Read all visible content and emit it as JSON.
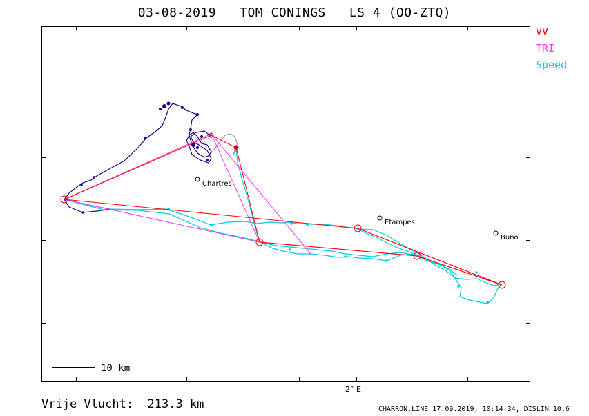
{
  "title": "03-08-2019   TOM CONINGS   LS 4 (OO-ZTQ)",
  "legend": [
    {
      "label": "VV",
      "color": "#ff0000"
    },
    {
      "label": "TRI",
      "color": "#ff33ff"
    },
    {
      "label": "Speed",
      "color": "#00ccdd"
    }
  ],
  "places": [
    {
      "name": "Chartres"
    },
    {
      "name": "Etampes"
    },
    {
      "name": "Buno"
    }
  ],
  "axis_label": "2° E",
  "scale_label": "10 km",
  "distance": "Vrije Vlucht:  213.3 km",
  "footer": "CHARRON.LINE 17.09.2019, 10:14:34, DISLIN 10.6",
  "colors": {
    "vv": "#ff0000",
    "tri": "#ff33ff",
    "speed": "#00ccdd",
    "climb": "#220088",
    "glide": "#999999"
  }
}
